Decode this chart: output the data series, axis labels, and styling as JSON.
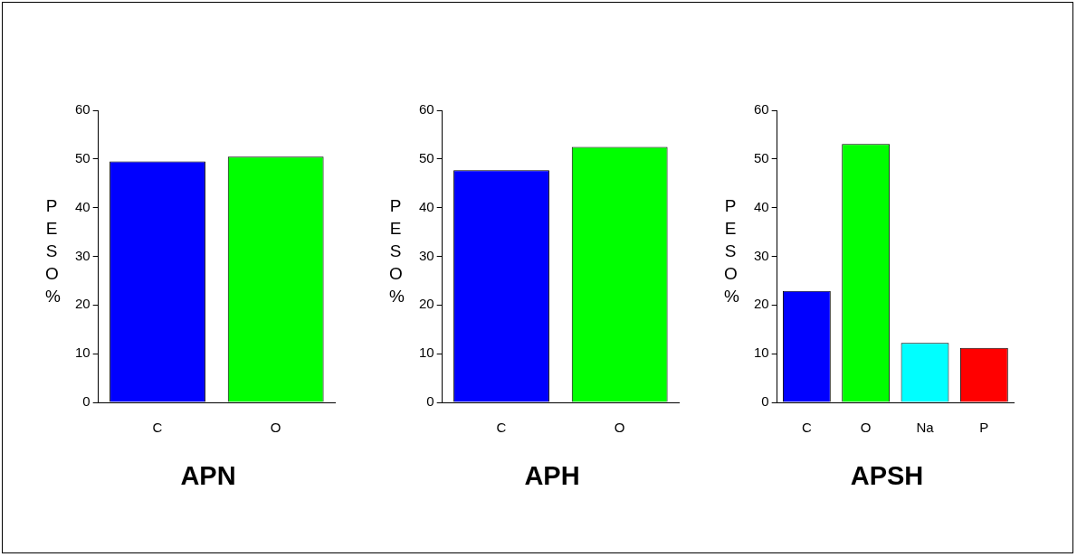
{
  "chart_data": [
    {
      "type": "bar",
      "xlabel": "APN",
      "ylabel": "PESO %",
      "categories": [
        "C",
        "O"
      ],
      "colors": [
        "#0000ff",
        "#00ff00"
      ],
      "values": [
        49.5,
        50.5
      ],
      "ylim": [
        0,
        60
      ],
      "yticks": [
        0,
        10,
        20,
        30,
        40,
        50,
        60
      ],
      "grid": false,
      "legend": false
    },
    {
      "type": "bar",
      "xlabel": "APH",
      "ylabel": "PESO %",
      "categories": [
        "C",
        "O"
      ],
      "colors": [
        "#0000ff",
        "#00ff00"
      ],
      "values": [
        47.7,
        52.5
      ],
      "ylim": [
        0,
        60
      ],
      "yticks": [
        0,
        10,
        20,
        30,
        40,
        50,
        60
      ],
      "grid": false,
      "legend": false
    },
    {
      "type": "bar",
      "xlabel": "APSH",
      "ylabel": "PESO %",
      "categories": [
        "C",
        "O",
        "Na",
        "P"
      ],
      "colors": [
        "#0000ff",
        "#00ff00",
        "#00ffff",
        "#ff0000"
      ],
      "values": [
        22.9,
        53.1,
        12.2,
        11.2
      ],
      "ylim": [
        0,
        60
      ],
      "yticks": [
        0,
        10,
        20,
        30,
        40,
        50,
        60
      ],
      "grid": false,
      "legend": false
    }
  ]
}
